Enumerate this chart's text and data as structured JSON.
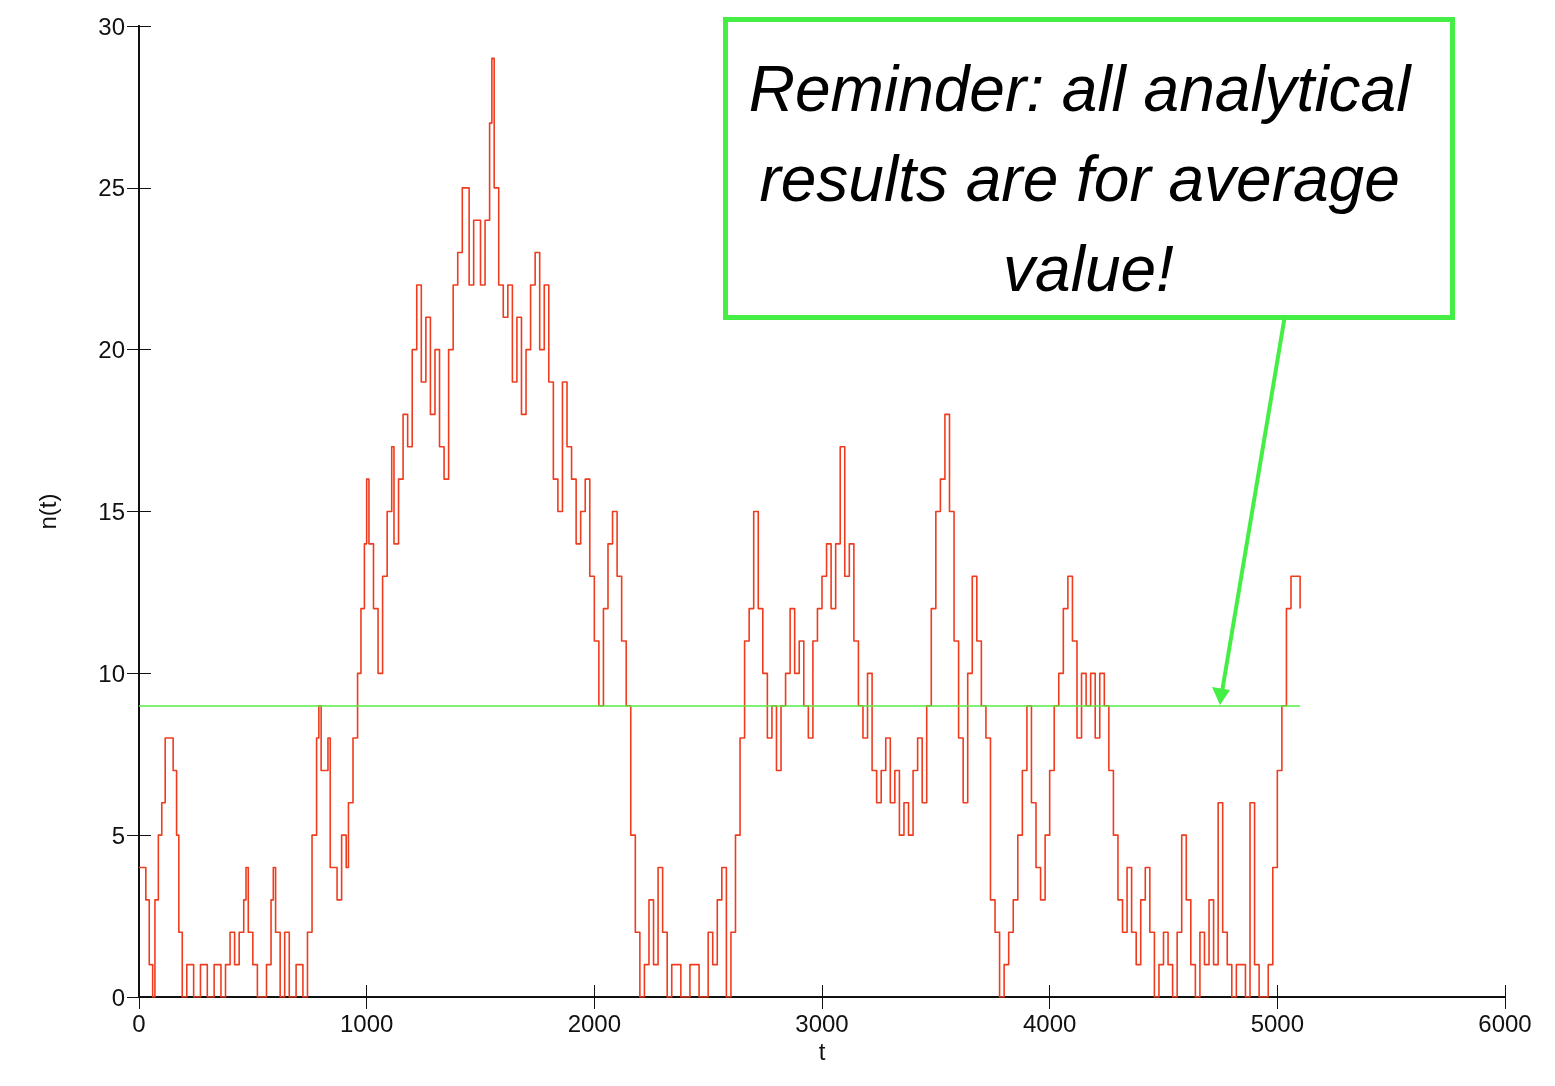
{
  "chart_data": {
    "type": "step",
    "xlabel": "t",
    "ylabel": "n(t)",
    "xlim": [
      0,
      6000
    ],
    "xticks": [
      0,
      1000,
      2000,
      3000,
      4000,
      5000,
      6000
    ],
    "ylim": [
      0,
      30
    ],
    "yticks": [
      0,
      5,
      10,
      15,
      20,
      25,
      30
    ],
    "grid": false,
    "marker": "none",
    "series": [
      {
        "color": "#f03c1e",
        "x": [
          0,
          30,
          45,
          60,
          70,
          85,
          100,
          115,
          150,
          165,
          175,
          190,
          210,
          240,
          270,
          300,
          330,
          360,
          380,
          400,
          420,
          440,
          460,
          470,
          480,
          500,
          520,
          560,
          580,
          590,
          600,
          620,
          640,
          660,
          690,
          720,
          740,
          760,
          780,
          790,
          800,
          830,
          840,
          870,
          890,
          910,
          920,
          940,
          960,
          975,
          990,
          1000,
          1010,
          1030,
          1050,
          1070,
          1090,
          1110,
          1120,
          1140,
          1160,
          1180,
          1200,
          1220,
          1240,
          1260,
          1280,
          1300,
          1320,
          1340,
          1360,
          1380,
          1400,
          1420,
          1450,
          1470,
          1500,
          1520,
          1540,
          1550,
          1560,
          1580,
          1600,
          1620,
          1640,
          1660,
          1680,
          1700,
          1720,
          1740,
          1760,
          1780,
          1800,
          1820,
          1840,
          1860,
          1880,
          1900,
          1920,
          1940,
          1960,
          1980,
          2000,
          2020,
          2040,
          2060,
          2080,
          2100,
          2120,
          2140,
          2160,
          2180,
          2200,
          2220,
          2240,
          2260,
          2280,
          2300,
          2320,
          2340,
          2380,
          2420,
          2460,
          2500,
          2520,
          2540,
          2560,
          2580,
          2600,
          2620,
          2640,
          2660,
          2680,
          2700,
          2720,
          2740,
          2760,
          2780,
          2800,
          2820,
          2840,
          2860,
          2880,
          2900,
          2920,
          2940,
          2960,
          2980,
          3000,
          3020,
          3040,
          3060,
          3080,
          3100,
          3120,
          3140,
          3160,
          3180,
          3200,
          3220,
          3240,
          3260,
          3280,
          3300,
          3320,
          3340,
          3360,
          3380,
          3400,
          3420,
          3440,
          3460,
          3480,
          3500,
          3520,
          3540,
          3560,
          3580,
          3600,
          3620,
          3640,
          3660,
          3680,
          3700,
          3720,
          3740,
          3760,
          3780,
          3800,
          3820,
          3840,
          3860,
          3880,
          3900,
          3920,
          3940,
          3960,
          3980,
          4000,
          4020,
          4040,
          4060,
          4080,
          4100,
          4120,
          4140,
          4160,
          4180,
          4200,
          4220,
          4240,
          4260,
          4280,
          4300,
          4320,
          4340,
          4360,
          4380,
          4400,
          4420,
          4440,
          4460,
          4480,
          4500,
          4520,
          4540,
          4560,
          4580,
          4600,
          4620,
          4640,
          4660,
          4680,
          4700,
          4720,
          4740,
          4760,
          4780,
          4800,
          4820,
          4860,
          4880,
          4900,
          4920,
          4960,
          4980,
          5000,
          5020,
          5040,
          5060,
          5100
        ],
        "values": [
          4,
          3,
          1,
          0,
          3,
          5,
          6,
          8,
          7,
          5,
          2,
          0,
          1,
          0,
          1,
          0,
          1,
          0,
          1,
          2,
          1,
          2,
          3,
          4,
          2,
          1,
          0,
          1,
          3,
          4,
          2,
          0,
          2,
          0,
          1,
          0,
          2,
          5,
          8,
          9,
          7,
          8,
          4,
          3,
          5,
          4,
          6,
          8,
          10,
          12,
          14,
          16,
          14,
          12,
          10,
          13,
          15,
          17,
          14,
          16,
          18,
          17,
          20,
          22,
          19,
          21,
          18,
          20,
          17,
          16,
          20,
          22,
          23,
          25,
          22,
          24,
          22,
          24,
          27,
          29,
          25,
          22,
          21,
          22,
          19,
          21,
          18,
          20,
          22,
          23,
          20,
          22,
          19,
          16,
          15,
          19,
          17,
          16,
          14,
          15,
          16,
          13,
          11,
          9,
          12,
          14,
          15,
          13,
          11,
          9,
          5,
          2,
          0,
          1,
          3,
          1,
          4,
          2,
          0,
          1,
          0,
          1,
          0,
          2,
          1,
          3,
          4,
          0,
          2,
          5,
          8,
          11,
          12,
          15,
          12,
          10,
          8,
          9,
          7,
          9,
          10,
          12,
          10,
          11,
          9,
          8,
          11,
          12,
          13,
          14,
          12,
          14,
          17,
          13,
          14,
          11,
          9,
          8,
          10,
          7,
          6,
          7,
          8,
          6,
          7,
          5,
          6,
          5,
          7,
          8,
          6,
          9,
          12,
          15,
          16,
          18,
          15,
          11,
          8,
          6,
          10,
          13,
          11,
          9,
          8,
          3,
          2,
          0,
          1,
          2,
          3,
          5,
          7,
          9,
          6,
          4,
          3,
          5,
          7,
          9,
          10,
          12,
          13,
          11,
          8,
          10,
          9,
          10,
          8,
          10,
          9,
          7,
          5,
          3,
          2,
          4,
          2,
          1,
          3,
          4,
          2,
          0,
          1,
          2,
          1,
          0,
          2,
          5,
          3,
          1,
          0,
          2,
          1,
          3,
          1,
          6,
          2,
          1,
          0,
          1,
          0,
          6,
          1,
          0,
          1,
          4,
          7,
          9,
          12,
          13,
          12
        ]
      }
    ],
    "ref_lines": [
      {
        "axis": "y",
        "value": 9,
        "color": "#55ee44"
      }
    ],
    "annotations": [
      "Reminder: all analytical results are for average value!"
    ]
  }
}
